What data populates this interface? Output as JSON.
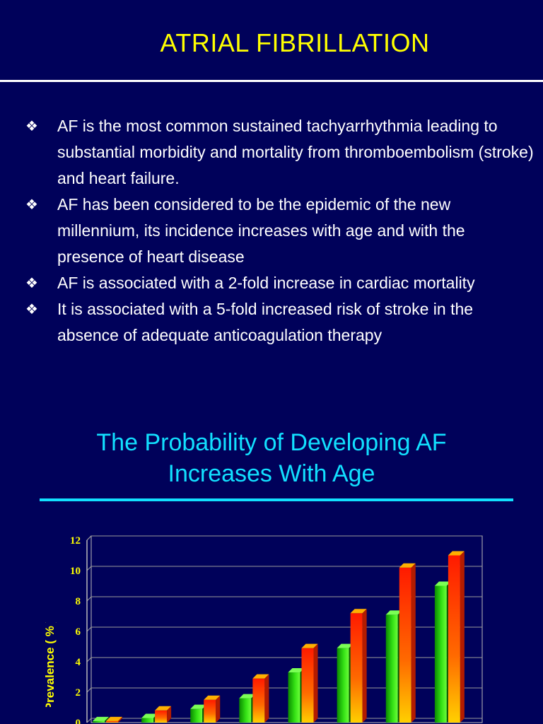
{
  "slide": {
    "title": "ATRIAL FIBRILLATION",
    "bullet_icon": "diamond-bullet-icon",
    "bullets": [
      "AF is the most common sustained tachyarrhythmia leading to substantial morbidity and mortality from thromboembolism (stroke) and heart failure.",
      "AF has been considered to be the epidemic of the new millennium, its incidence increases with age and with the presence of heart disease",
      "AF is associated with a 2-fold increase in cardiac mortality",
      "It is associated with a 5-fold increased risk of stroke in the absence of adequate anticoagulation therapy"
    ],
    "subtitle_line1": "The Probability of Developing AF",
    "subtitle_line2": "Increases With Age",
    "colors": {
      "background": "#00015a",
      "title": "#ffff00",
      "subtitle": "#12e0ff",
      "series_green": "#22c40a",
      "series_red": "#ff3000"
    }
  },
  "chart_data": {
    "type": "bar",
    "ylabel": "Prevalence ( % )",
    "ylim": [
      0,
      12
    ],
    "yticks": [
      0,
      2,
      4,
      6,
      8,
      10,
      12
    ],
    "categories": [
      "",
      "",
      "",
      "",
      "",
      "",
      "",
      ""
    ],
    "series": [
      {
        "values": [
          0.1,
          0.3,
          0.9,
          1.6,
          3.3,
          4.9,
          7.1,
          9.0
        ]
      },
      {
        "values": [
          0.1,
          0.8,
          1.5,
          2.9,
          4.9,
          7.2,
          10.2,
          11.0
        ]
      }
    ],
    "grid": true
  }
}
